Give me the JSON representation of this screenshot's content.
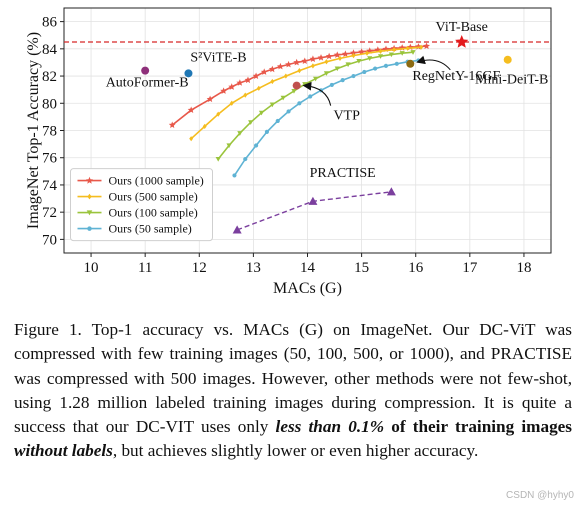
{
  "chart_data": {
    "type": "line",
    "xlabel": "MACs (G)",
    "ylabel": "ImageNet Top-1 Accuracy (%)",
    "xlim": [
      9.5,
      18.5
    ],
    "ylim": [
      69,
      87
    ],
    "x_ticks": [
      10,
      11,
      12,
      13,
      14,
      15,
      16,
      17,
      18
    ],
    "y_ticks": [
      70,
      72,
      74,
      76,
      78,
      80,
      82,
      84,
      86
    ],
    "grid": true,
    "legend_position": "lower-left",
    "reference_line": {
      "y": 84.5,
      "color": "#d62728",
      "style": "dashed"
    },
    "series": [
      {
        "name": "Ours (1000 sample)",
        "color": "#e8584a",
        "marker": "star",
        "x": [
          11.5,
          11.85,
          12.2,
          12.45,
          12.6,
          12.75,
          12.9,
          13.05,
          13.2,
          13.35,
          13.5,
          13.65,
          13.8,
          13.95,
          14.1,
          14.25,
          14.4,
          14.55,
          14.7,
          14.85,
          15.0,
          15.15,
          15.3,
          15.45,
          15.6,
          15.75,
          15.9,
          16.05,
          16.2
        ],
        "y": [
          78.4,
          79.5,
          80.3,
          80.9,
          81.2,
          81.5,
          81.7,
          82.0,
          82.3,
          82.5,
          82.7,
          82.85,
          83.0,
          83.1,
          83.25,
          83.35,
          83.45,
          83.55,
          83.62,
          83.7,
          83.78,
          83.85,
          83.92,
          83.98,
          84.03,
          84.08,
          84.12,
          84.16,
          84.2
        ]
      },
      {
        "name": "Ours (500 sample)",
        "color": "#f5bd1f",
        "marker": "diamond",
        "x": [
          11.85,
          12.1,
          12.35,
          12.6,
          12.85,
          13.1,
          13.35,
          13.6,
          13.85,
          14.1,
          14.35,
          14.6,
          14.85,
          15.1,
          15.35,
          15.6,
          15.85,
          16.1
        ],
        "y": [
          77.4,
          78.3,
          79.2,
          80.0,
          80.6,
          81.1,
          81.6,
          82.0,
          82.4,
          82.75,
          83.05,
          83.3,
          83.5,
          83.68,
          83.82,
          83.94,
          84.04,
          84.12
        ]
      },
      {
        "name": "Ours (100 sample)",
        "color": "#9ac43c",
        "marker": "triangle-down",
        "x": [
          12.35,
          12.55,
          12.75,
          12.95,
          13.15,
          13.35,
          13.55,
          13.75,
          13.95,
          14.15,
          14.35,
          14.55,
          14.75,
          14.95,
          15.15,
          15.35,
          15.55,
          15.75,
          15.95
        ],
        "y": [
          75.9,
          76.9,
          77.8,
          78.6,
          79.3,
          79.9,
          80.4,
          80.9,
          81.4,
          81.8,
          82.2,
          82.55,
          82.85,
          83.1,
          83.3,
          83.45,
          83.58,
          83.68,
          83.75
        ]
      },
      {
        "name": "Ours (50 sample)",
        "color": "#5fb3d4",
        "marker": "circle",
        "x": [
          12.65,
          12.85,
          13.05,
          13.25,
          13.45,
          13.65,
          13.85,
          14.05,
          14.25,
          14.45,
          14.65,
          14.85,
          15.05,
          15.25,
          15.45,
          15.65,
          15.85,
          16.05
        ],
        "y": [
          74.7,
          75.9,
          76.9,
          77.9,
          78.7,
          79.4,
          80.0,
          80.5,
          80.95,
          81.35,
          81.7,
          82.0,
          82.3,
          82.55,
          82.75,
          82.9,
          83.05,
          83.15
        ]
      },
      {
        "name": "PRACTISE",
        "color": "#7b3f9e",
        "marker": "triangle-up",
        "style": "dashed",
        "x": [
          12.7,
          14.1,
          15.55
        ],
        "y": [
          70.7,
          72.8,
          73.5
        ]
      }
    ],
    "points": [
      {
        "label": "ViT-Base",
        "x": 16.85,
        "y": 84.5,
        "color": "#e31a1c",
        "marker": "star"
      },
      {
        "label": "Mini-DeiT-B",
        "x": 17.7,
        "y": 83.2,
        "color": "#f5bd1f",
        "marker": "circle"
      },
      {
        "label": "RegNetY-16GF",
        "x": 15.9,
        "y": 82.9,
        "color": "#8b6a12",
        "marker": "circle"
      },
      {
        "label": "VTP",
        "x": 13.8,
        "y": 81.3,
        "color": "#c0504d",
        "marker": "circle"
      },
      {
        "label": "AutoFormer-B",
        "x": 11.0,
        "y": 82.4,
        "color": "#8e2f7a",
        "marker": "circle"
      },
      {
        "label": "S²ViTE-B",
        "x": 11.8,
        "y": 82.2,
        "color": "#1f77b4",
        "marker": "circle"
      }
    ]
  },
  "caption": {
    "part1": "Figure 1. Top-1 accuracy vs. MACs (G) on ImageNet. Our DC-ViT was compressed with few training images (50, 100, 500, or 1000), and PRACTISE was compressed with 500 images. However, other methods were not few-shot, using 1.28 million labeled training images during compression. It is quite a success that our DC-VIT uses only ",
    "emph1": "less than 0.1%",
    "strong1": " of their training images ",
    "emph2": "without labels",
    "part2": ", but achieves slightly lower or even higher accuracy."
  },
  "watermark": "CSDN @hyhy0"
}
